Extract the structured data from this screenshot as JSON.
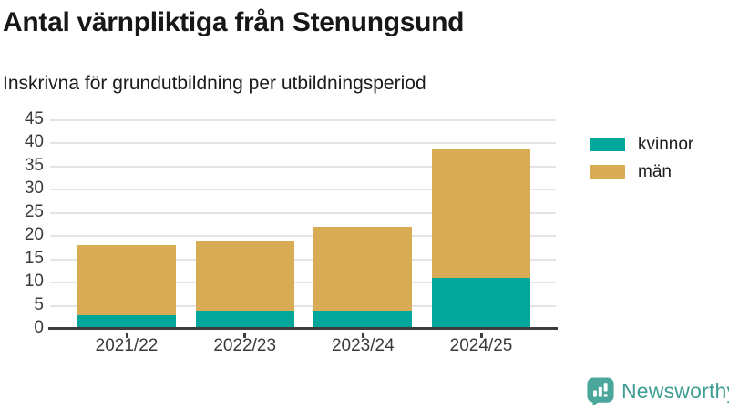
{
  "header": {
    "title": "Antal värnpliktiga från Stenungsund",
    "subtitle": "Inskrivna för grundutbildning per utbildningsperiod"
  },
  "chart_data": {
    "type": "bar",
    "stacked": true,
    "title": "Antal värnpliktiga från Stenungsund",
    "subtitle": "Inskrivna för grundutbildning per utbildningsperiod",
    "categories": [
      "2021/22",
      "2022/23",
      "2023/24",
      "2024/25"
    ],
    "series": [
      {
        "name": "kvinnor",
        "color": "#00A79A",
        "values": [
          3,
          4,
          4,
          11
        ]
      },
      {
        "name": "män",
        "color": "#D8AB55",
        "values": [
          15,
          15,
          18,
          28
        ]
      }
    ],
    "totals": [
      18,
      19,
      22,
      39
    ],
    "xlabel": "",
    "ylabel": "",
    "ylim": [
      0,
      45
    ],
    "ytick_step": 5,
    "grid": true,
    "legend_position": "right"
  },
  "colors": {
    "kvinnor": "#00A79A",
    "man": "#D8AB55",
    "axis": "#3d3d3d",
    "gridline": "#e4e4e4",
    "brand": "#3e9e92"
  },
  "footer": {
    "brand": "Newsworthy"
  }
}
